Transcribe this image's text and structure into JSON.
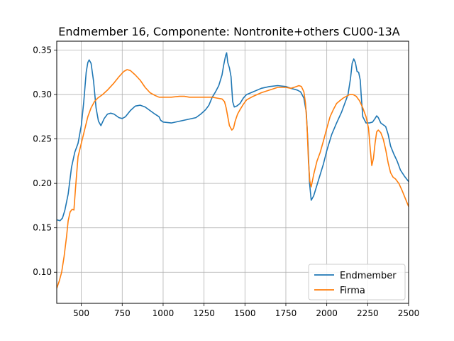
{
  "chart_data": {
    "type": "line",
    "title": "Endmember 16, Componente: Nontronite+others CU00-13A",
    "xlabel": "",
    "ylabel": "",
    "xlim": [
      350,
      2500
    ],
    "ylim": [
      0.065,
      0.36
    ],
    "xticks": [
      500,
      750,
      1000,
      1250,
      1500,
      1750,
      2000,
      2250,
      2500
    ],
    "yticks": [
      0.1,
      0.15,
      0.2,
      0.25,
      0.3,
      0.35
    ],
    "xtick_labels": [
      "500",
      "750",
      "1000",
      "1250",
      "1500",
      "1750",
      "2000",
      "2250",
      "2500"
    ],
    "ytick_labels": [
      "0.10",
      "0.15",
      "0.20",
      "0.25",
      "0.30",
      "0.35"
    ],
    "grid": true,
    "legend_position": "lower-right",
    "series": [
      {
        "name": "Endmember",
        "color": "#1f77b4",
        "points": [
          [
            350,
            0.159
          ],
          [
            370,
            0.158
          ],
          [
            385,
            0.161
          ],
          [
            400,
            0.17
          ],
          [
            420,
            0.188
          ],
          [
            440,
            0.218
          ],
          [
            460,
            0.235
          ],
          [
            480,
            0.245
          ],
          [
            500,
            0.265
          ],
          [
            515,
            0.292
          ],
          [
            530,
            0.325
          ],
          [
            540,
            0.336
          ],
          [
            548,
            0.339
          ],
          [
            560,
            0.335
          ],
          [
            575,
            0.315
          ],
          [
            590,
            0.285
          ],
          [
            605,
            0.27
          ],
          [
            620,
            0.265
          ],
          [
            640,
            0.273
          ],
          [
            660,
            0.278
          ],
          [
            680,
            0.279
          ],
          [
            700,
            0.278
          ],
          [
            730,
            0.274
          ],
          [
            750,
            0.273
          ],
          [
            770,
            0.275
          ],
          [
            800,
            0.282
          ],
          [
            830,
            0.287
          ],
          [
            860,
            0.288
          ],
          [
            890,
            0.286
          ],
          [
            920,
            0.282
          ],
          [
            950,
            0.278
          ],
          [
            975,
            0.275
          ],
          [
            985,
            0.271
          ],
          [
            1000,
            0.269
          ],
          [
            1050,
            0.268
          ],
          [
            1100,
            0.27
          ],
          [
            1150,
            0.272
          ],
          [
            1200,
            0.274
          ],
          [
            1230,
            0.278
          ],
          [
            1260,
            0.283
          ],
          [
            1280,
            0.288
          ],
          [
            1300,
            0.297
          ],
          [
            1320,
            0.303
          ],
          [
            1340,
            0.31
          ],
          [
            1360,
            0.322
          ],
          [
            1370,
            0.333
          ],
          [
            1382,
            0.344
          ],
          [
            1388,
            0.347
          ],
          [
            1395,
            0.336
          ],
          [
            1405,
            0.33
          ],
          [
            1415,
            0.32
          ],
          [
            1425,
            0.292
          ],
          [
            1435,
            0.286
          ],
          [
            1450,
            0.287
          ],
          [
            1470,
            0.29
          ],
          [
            1490,
            0.296
          ],
          [
            1510,
            0.3
          ],
          [
            1550,
            0.303
          ],
          [
            1600,
            0.307
          ],
          [
            1650,
            0.309
          ],
          [
            1700,
            0.31
          ],
          [
            1750,
            0.309
          ],
          [
            1780,
            0.307
          ],
          [
            1800,
            0.306
          ],
          [
            1820,
            0.305
          ],
          [
            1840,
            0.303
          ],
          [
            1860,
            0.296
          ],
          [
            1875,
            0.28
          ],
          [
            1885,
            0.245
          ],
          [
            1895,
            0.2
          ],
          [
            1905,
            0.181
          ],
          [
            1920,
            0.186
          ],
          [
            1940,
            0.198
          ],
          [
            1960,
            0.21
          ],
          [
            1980,
            0.222
          ],
          [
            2000,
            0.237
          ],
          [
            2030,
            0.255
          ],
          [
            2060,
            0.268
          ],
          [
            2090,
            0.28
          ],
          [
            2110,
            0.29
          ],
          [
            2130,
            0.3
          ],
          [
            2145,
            0.318
          ],
          [
            2155,
            0.335
          ],
          [
            2165,
            0.34
          ],
          [
            2175,
            0.336
          ],
          [
            2185,
            0.326
          ],
          [
            2195,
            0.325
          ],
          [
            2205,
            0.316
          ],
          [
            2210,
            0.3
          ],
          [
            2220,
            0.275
          ],
          [
            2240,
            0.268
          ],
          [
            2260,
            0.268
          ],
          [
            2280,
            0.269
          ],
          [
            2295,
            0.273
          ],
          [
            2305,
            0.276
          ],
          [
            2315,
            0.274
          ],
          [
            2330,
            0.268
          ],
          [
            2345,
            0.266
          ],
          [
            2360,
            0.264
          ],
          [
            2375,
            0.255
          ],
          [
            2390,
            0.242
          ],
          [
            2410,
            0.233
          ],
          [
            2430,
            0.225
          ],
          [
            2450,
            0.215
          ],
          [
            2475,
            0.208
          ],
          [
            2500,
            0.202
          ]
        ]
      },
      {
        "name": "Firma",
        "color": "#ff7f0e",
        "points": [
          [
            350,
            0.082
          ],
          [
            365,
            0.09
          ],
          [
            380,
            0.1
          ],
          [
            395,
            0.118
          ],
          [
            410,
            0.14
          ],
          [
            420,
            0.158
          ],
          [
            432,
            0.168
          ],
          [
            445,
            0.171
          ],
          [
            455,
            0.17
          ],
          [
            465,
            0.195
          ],
          [
            480,
            0.23
          ],
          [
            500,
            0.245
          ],
          [
            520,
            0.26
          ],
          [
            540,
            0.275
          ],
          [
            560,
            0.285
          ],
          [
            580,
            0.292
          ],
          [
            600,
            0.296
          ],
          [
            630,
            0.3
          ],
          [
            660,
            0.305
          ],
          [
            700,
            0.313
          ],
          [
            730,
            0.32
          ],
          [
            760,
            0.326
          ],
          [
            780,
            0.328
          ],
          [
            800,
            0.327
          ],
          [
            830,
            0.322
          ],
          [
            860,
            0.316
          ],
          [
            890,
            0.308
          ],
          [
            920,
            0.302
          ],
          [
            950,
            0.299
          ],
          [
            975,
            0.297
          ],
          [
            1000,
            0.297
          ],
          [
            1050,
            0.297
          ],
          [
            1100,
            0.298
          ],
          [
            1130,
            0.298
          ],
          [
            1160,
            0.297
          ],
          [
            1200,
            0.297
          ],
          [
            1250,
            0.297
          ],
          [
            1300,
            0.297
          ],
          [
            1330,
            0.296
          ],
          [
            1360,
            0.295
          ],
          [
            1375,
            0.292
          ],
          [
            1385,
            0.285
          ],
          [
            1395,
            0.275
          ],
          [
            1405,
            0.265
          ],
          [
            1420,
            0.26
          ],
          [
            1430,
            0.262
          ],
          [
            1440,
            0.27
          ],
          [
            1455,
            0.278
          ],
          [
            1470,
            0.283
          ],
          [
            1490,
            0.289
          ],
          [
            1510,
            0.294
          ],
          [
            1550,
            0.298
          ],
          [
            1600,
            0.302
          ],
          [
            1650,
            0.305
          ],
          [
            1700,
            0.308
          ],
          [
            1750,
            0.308
          ],
          [
            1780,
            0.307
          ],
          [
            1800,
            0.308
          ],
          [
            1830,
            0.31
          ],
          [
            1845,
            0.309
          ],
          [
            1860,
            0.303
          ],
          [
            1870,
            0.29
          ],
          [
            1880,
            0.262
          ],
          [
            1888,
            0.225
          ],
          [
            1896,
            0.203
          ],
          [
            1905,
            0.196
          ],
          [
            1920,
            0.21
          ],
          [
            1940,
            0.225
          ],
          [
            1960,
            0.235
          ],
          [
            1980,
            0.248
          ],
          [
            2000,
            0.262
          ],
          [
            2020,
            0.275
          ],
          [
            2040,
            0.283
          ],
          [
            2060,
            0.29
          ],
          [
            2080,
            0.293
          ],
          [
            2100,
            0.296
          ],
          [
            2120,
            0.298
          ],
          [
            2140,
            0.3
          ],
          [
            2160,
            0.3
          ],
          [
            2180,
            0.298
          ],
          [
            2200,
            0.293
          ],
          [
            2220,
            0.285
          ],
          [
            2240,
            0.275
          ],
          [
            2255,
            0.262
          ],
          [
            2265,
            0.24
          ],
          [
            2275,
            0.22
          ],
          [
            2285,
            0.228
          ],
          [
            2295,
            0.245
          ],
          [
            2305,
            0.258
          ],
          [
            2315,
            0.26
          ],
          [
            2330,
            0.257
          ],
          [
            2345,
            0.25
          ],
          [
            2360,
            0.238
          ],
          [
            2375,
            0.223
          ],
          [
            2390,
            0.212
          ],
          [
            2405,
            0.207
          ],
          [
            2420,
            0.205
          ],
          [
            2440,
            0.2
          ],
          [
            2460,
            0.192
          ],
          [
            2480,
            0.183
          ],
          [
            2500,
            0.174
          ]
        ]
      }
    ]
  }
}
